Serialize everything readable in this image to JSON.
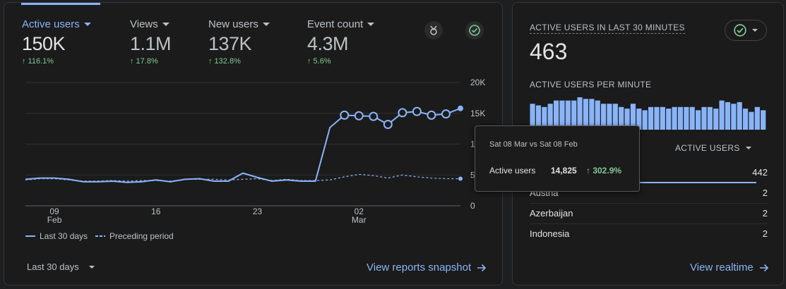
{
  "metrics": [
    {
      "label": "Active users",
      "value": "150K",
      "change": "↑ 116.1%",
      "active": true
    },
    {
      "label": "Views",
      "value": "1.1M",
      "change": "↑ 17.8%",
      "active": false
    },
    {
      "label": "New users",
      "value": "137K",
      "change": "↑ 132.8%",
      "active": false
    },
    {
      "label": "Event count",
      "value": "4.3M",
      "change": "↑ 5.6%",
      "active": false
    }
  ],
  "chart_data": {
    "type": "line",
    "ylim": [
      0,
      20000
    ],
    "y_ticks": [
      "20K",
      "15K",
      "10K",
      "5K",
      "0"
    ],
    "x_ticks": [
      {
        "day": "09",
        "month": "Feb"
      },
      {
        "day": "16",
        "month": ""
      },
      {
        "day": "23",
        "month": ""
      },
      {
        "day": "02",
        "month": "Mar"
      }
    ],
    "series": [
      {
        "name": "Last 30 days",
        "style": "solid",
        "color": "#8ab4f8",
        "values": [
          4300,
          4500,
          4500,
          4300,
          3900,
          3900,
          4000,
          3800,
          3900,
          4200,
          3900,
          4300,
          4400,
          4000,
          4000,
          5300,
          4600,
          4000,
          4200,
          4000,
          4000,
          12700,
          14700,
          14600,
          14500,
          13200,
          15100,
          15300,
          14700,
          14900,
          15800
        ]
      },
      {
        "name": "Preceding period",
        "style": "dashed",
        "color": "#8ab4f8",
        "values": [
          4200,
          4400,
          4400,
          4200,
          4000,
          4000,
          4100,
          4000,
          4100,
          4100,
          4000,
          4300,
          4300,
          4300,
          4200,
          4300,
          4400,
          4100,
          4300,
          4100,
          4100,
          4200,
          4700,
          5100,
          4900,
          4500,
          5000,
          4700,
          4500,
          4400,
          4400
        ]
      }
    ],
    "legend": [
      {
        "label": "Last 30 days",
        "style": "solid"
      },
      {
        "label": "Preceding period",
        "style": "dashed"
      }
    ]
  },
  "tooltip": {
    "date_range": "Sat 08 Mar vs Sat 08 Feb",
    "metric_label": "Active users",
    "value": "14,825",
    "change": "↑ 302.9%"
  },
  "date_range_select": "Last 30 days",
  "view_snapshot_link": "View reports snapshot",
  "realtime": {
    "title": "ACTIVE USERS IN LAST 30 MINUTES",
    "value": "463",
    "per_minute_label": "ACTIVE USERS PER MINUTE",
    "per_minute_values": [
      16,
      15,
      14,
      16,
      18,
      18,
      18,
      18,
      20,
      19,
      19,
      18,
      16,
      16,
      16,
      14,
      13,
      16,
      13,
      12,
      14,
      14,
      14,
      13,
      14,
      14,
      14,
      14,
      12,
      14,
      14,
      13,
      18,
      17,
      16,
      17,
      13,
      11,
      14,
      12
    ],
    "column_header": "ACTIVE USERS",
    "rows": [
      {
        "country": "",
        "value": "442"
      },
      {
        "country": "Austria",
        "value": "2"
      },
      {
        "country": "Azerbaijan",
        "value": "2"
      },
      {
        "country": "Indonesia",
        "value": "2"
      }
    ],
    "link": "View realtime"
  },
  "colors": {
    "accent": "#8ab4f8",
    "positive": "#81c995",
    "card_bg": "#1b1b1b"
  },
  "icons": {
    "insights": "sparkle-icon",
    "status": "check-circle-icon",
    "arrow": "arrow-right-icon"
  }
}
